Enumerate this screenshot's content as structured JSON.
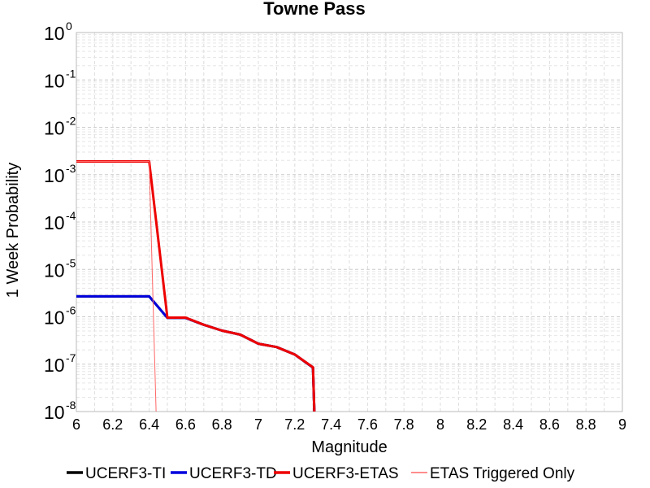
{
  "chart_data": {
    "type": "line",
    "title": "Towne Pass",
    "xlabel": "Magnitude",
    "ylabel": "1 Week Probability",
    "xlim": [
      6,
      9
    ],
    "ylim": [
      1e-08,
      1
    ],
    "yscale": "log",
    "grid": true,
    "legend_position": "bottom",
    "x_ticks": [
      "6",
      "6.2",
      "6.4",
      "6.6",
      "6.8",
      "7",
      "7.2",
      "7.4",
      "7.6",
      "7.8",
      "8",
      "8.2",
      "8.4",
      "8.6",
      "8.8",
      "9"
    ],
    "y_ticks": [
      {
        "base": "10",
        "exp": "0"
      },
      {
        "base": "10",
        "exp": "-1"
      },
      {
        "base": "10",
        "exp": "-2"
      },
      {
        "base": "10",
        "exp": "-3"
      },
      {
        "base": "10",
        "exp": "-4"
      },
      {
        "base": "10",
        "exp": "-5"
      },
      {
        "base": "10",
        "exp": "-6"
      },
      {
        "base": "10",
        "exp": "-7"
      },
      {
        "base": "10",
        "exp": "-8"
      }
    ],
    "series": [
      {
        "name": "UCERF3-TI",
        "color": "#000000",
        "width": 3,
        "x": [
          6.0,
          6.1,
          6.2,
          6.3,
          6.4,
          6.5,
          6.6,
          6.7,
          6.8,
          6.9,
          7.0,
          7.1,
          7.2,
          7.3,
          7.31
        ],
        "y": [
          2.7e-06,
          2.7e-06,
          2.7e-06,
          2.7e-06,
          2.7e-06,
          9.5e-07,
          9.5e-07,
          6.8e-07,
          5.1e-07,
          4.2e-07,
          2.7e-07,
          2.3e-07,
          1.6e-07,
          8.5e-08,
          5e-09
        ]
      },
      {
        "name": "UCERF3-TD",
        "color": "#0000dd",
        "width": 3,
        "x": [
          6.0,
          6.1,
          6.2,
          6.3,
          6.4,
          6.5,
          6.6,
          6.7,
          6.8,
          6.9,
          7.0,
          7.1,
          7.2,
          7.3,
          7.31
        ],
        "y": [
          2.7e-06,
          2.7e-06,
          2.7e-06,
          2.7e-06,
          2.7e-06,
          9.5e-07,
          9.5e-07,
          6.8e-07,
          5.1e-07,
          4.2e-07,
          2.7e-07,
          2.3e-07,
          1.6e-07,
          8.5e-08,
          5e-09
        ]
      },
      {
        "name": "UCERF3-ETAS",
        "color": "#ee0000",
        "width": 3,
        "x": [
          6.0,
          6.1,
          6.2,
          6.3,
          6.4,
          6.5,
          6.6,
          6.7,
          6.8,
          6.9,
          7.0,
          7.1,
          7.2,
          7.3,
          7.31
        ],
        "y": [
          0.0019,
          0.0019,
          0.0019,
          0.0019,
          0.0019,
          9.6e-07,
          9.6e-07,
          6.8e-07,
          5.1e-07,
          4.2e-07,
          2.7e-07,
          2.3e-07,
          1.6e-07,
          8.6e-08,
          5e-09
        ]
      },
      {
        "name": "ETAS Triggered Only",
        "color": "#ff6666",
        "width": 1,
        "x": [
          6.0,
          6.1,
          6.2,
          6.3,
          6.4,
          6.44
        ],
        "y": [
          0.0019,
          0.0019,
          0.0019,
          0.0019,
          0.0019,
          5e-09
        ]
      }
    ]
  }
}
